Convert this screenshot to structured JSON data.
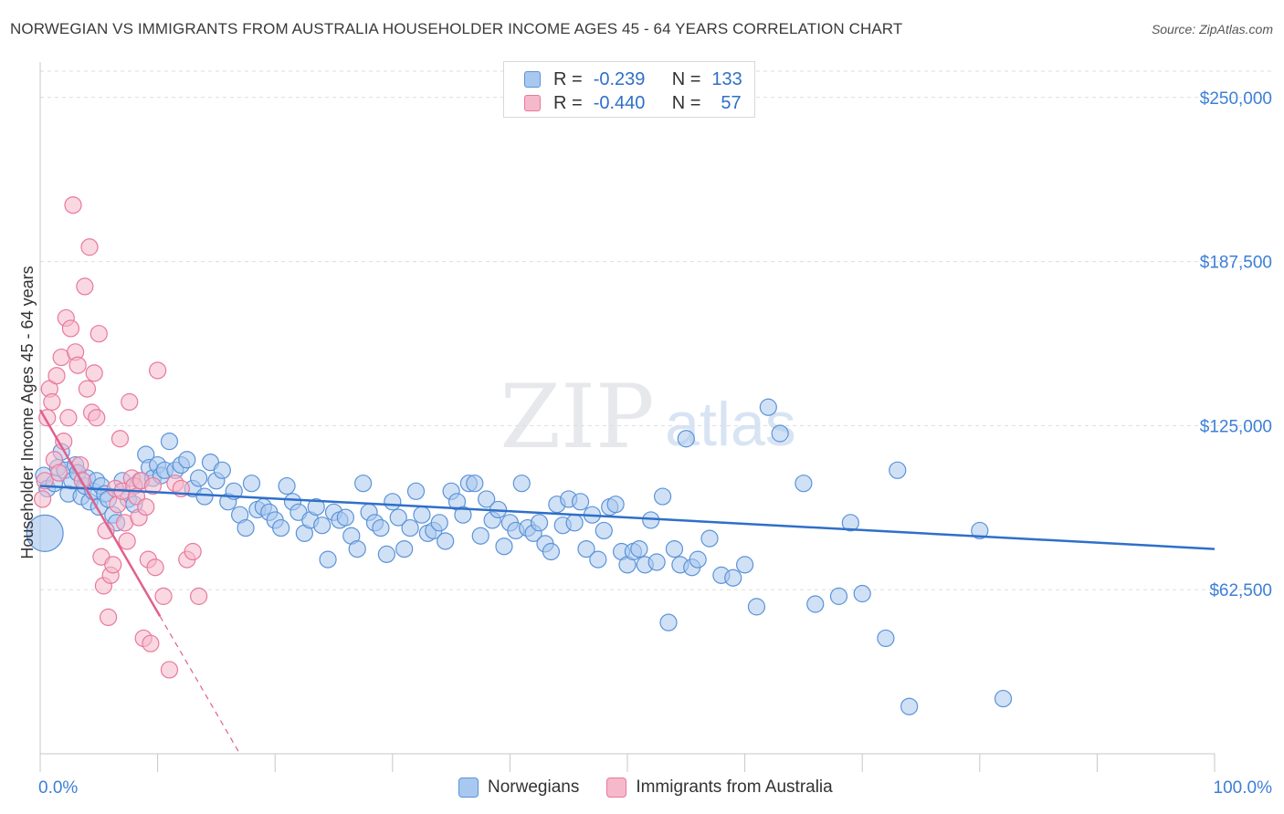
{
  "title": "NORWEGIAN VS IMMIGRANTS FROM AUSTRALIA HOUSEHOLDER INCOME AGES 45 - 64 YEARS CORRELATION CHART",
  "source": "Source: ZipAtlas.com",
  "watermark": {
    "zip": "ZIP",
    "atlas": "atlas"
  },
  "colors": {
    "blue_fill": "#a9c8ef",
    "blue_stroke": "#5b93d8",
    "blue_line": "#2f6fc9",
    "pink_fill": "#f6b8cb",
    "pink_stroke": "#e8789e",
    "pink_line": "#e0608c",
    "grid": "#d9dde4",
    "tick_label": "#3d7fd6"
  },
  "legend": {
    "series1": {
      "r_label": "R =",
      "r_value": "-0.239",
      "n_label": "N =",
      "n_value": "133"
    },
    "series2": {
      "r_label": "R =",
      "r_value": "-0.440",
      "n_label": "N =",
      "n_value": "57"
    }
  },
  "bottom_legend": {
    "series1": "Norwegians",
    "series2": "Immigrants from Australia"
  },
  "chart_data": {
    "type": "scatter",
    "title": "NORWEGIAN VS IMMIGRANTS FROM AUSTRALIA HOUSEHOLDER INCOME AGES 45 - 64 YEARS CORRELATION CHART",
    "xlabel": "",
    "ylabel": "Householder Income Ages 45 - 64 years",
    "xlim": [
      0,
      100
    ],
    "ylim": [
      0,
      260000
    ],
    "x_tick_labels": {
      "left": "0.0%",
      "right": "100.0%"
    },
    "y_ticks": [
      62500,
      125000,
      187500,
      250000
    ],
    "y_tick_labels": [
      "$62,500",
      "$125,000",
      "$187,500",
      "$250,000"
    ],
    "grid": true,
    "series": [
      {
        "name": "Norwegians",
        "r": -0.239,
        "n": 133,
        "trend": {
          "x0": 0,
          "y0": 102000,
          "x1": 100,
          "y1": 78000,
          "dashed_from_x": null
        },
        "points": [
          [
            0.3,
            106000
          ],
          [
            0.6,
            101000
          ],
          [
            1.2,
            103000
          ],
          [
            1.5,
            109000
          ],
          [
            1.8,
            115000
          ],
          [
            2.1,
            108000
          ],
          [
            2.4,
            99000
          ],
          [
            2.7,
            104000
          ],
          [
            3.0,
            110000
          ],
          [
            3.2,
            107000
          ],
          [
            3.5,
            98000
          ],
          [
            3.8,
            102000
          ],
          [
            4.0,
            105000
          ],
          [
            4.2,
            96000
          ],
          [
            4.5,
            100000
          ],
          [
            4.8,
            104000
          ],
          [
            5.0,
            94000
          ],
          [
            5.2,
            102000
          ],
          [
            5.5,
            99000
          ],
          [
            5.8,
            97000
          ],
          [
            6.2,
            91000
          ],
          [
            6.5,
            88000
          ],
          [
            7.0,
            104000
          ],
          [
            7.5,
            97000
          ],
          [
            8.0,
            95000
          ],
          [
            8.5,
            104000
          ],
          [
            9.0,
            114000
          ],
          [
            9.3,
            109000
          ],
          [
            9.6,
            105000
          ],
          [
            10.0,
            110000
          ],
          [
            10.3,
            106000
          ],
          [
            10.6,
            108000
          ],
          [
            11.0,
            119000
          ],
          [
            11.5,
            108000
          ],
          [
            12.0,
            110000
          ],
          [
            12.5,
            112000
          ],
          [
            13.0,
            101000
          ],
          [
            13.5,
            105000
          ],
          [
            14.0,
            98000
          ],
          [
            14.5,
            111000
          ],
          [
            15.0,
            104000
          ],
          [
            15.5,
            108000
          ],
          [
            16.0,
            96000
          ],
          [
            16.5,
            100000
          ],
          [
            17.0,
            91000
          ],
          [
            17.5,
            86000
          ],
          [
            18.0,
            103000
          ],
          [
            18.5,
            93000
          ],
          [
            19.0,
            94000
          ],
          [
            19.5,
            92000
          ],
          [
            20.0,
            89000
          ],
          [
            20.5,
            86000
          ],
          [
            21.0,
            102000
          ],
          [
            21.5,
            96000
          ],
          [
            22.0,
            92000
          ],
          [
            22.5,
            84000
          ],
          [
            23.0,
            89000
          ],
          [
            23.5,
            94000
          ],
          [
            24.0,
            87000
          ],
          [
            24.5,
            74000
          ],
          [
            25.0,
            92000
          ],
          [
            25.5,
            89000
          ],
          [
            26.0,
            90000
          ],
          [
            26.5,
            83000
          ],
          [
            27.0,
            78000
          ],
          [
            27.5,
            103000
          ],
          [
            28.0,
            92000
          ],
          [
            28.5,
            88000
          ],
          [
            29.0,
            86000
          ],
          [
            29.5,
            76000
          ],
          [
            30.0,
            96000
          ],
          [
            30.5,
            90000
          ],
          [
            31.0,
            78000
          ],
          [
            31.5,
            86000
          ],
          [
            32.0,
            100000
          ],
          [
            32.5,
            91000
          ],
          [
            33.0,
            84000
          ],
          [
            33.5,
            85000
          ],
          [
            34.0,
            88000
          ],
          [
            34.5,
            81000
          ],
          [
            35.0,
            100000
          ],
          [
            35.5,
            96000
          ],
          [
            36.0,
            91000
          ],
          [
            36.5,
            103000
          ],
          [
            37.0,
            103000
          ],
          [
            37.5,
            83000
          ],
          [
            38.0,
            97000
          ],
          [
            38.5,
            89000
          ],
          [
            39.0,
            93000
          ],
          [
            39.5,
            79000
          ],
          [
            40.0,
            88000
          ],
          [
            40.5,
            85000
          ],
          [
            41.0,
            103000
          ],
          [
            41.5,
            86000
          ],
          [
            42.0,
            84000
          ],
          [
            42.5,
            88000
          ],
          [
            43.0,
            80000
          ],
          [
            43.5,
            77000
          ],
          [
            44.0,
            95000
          ],
          [
            44.5,
            87000
          ],
          [
            45.0,
            97000
          ],
          [
            45.5,
            88000
          ],
          [
            46.0,
            96000
          ],
          [
            46.5,
            78000
          ],
          [
            47.0,
            91000
          ],
          [
            47.5,
            74000
          ],
          [
            48.0,
            85000
          ],
          [
            48.5,
            94000
          ],
          [
            49.0,
            95000
          ],
          [
            49.5,
            77000
          ],
          [
            50.0,
            72000
          ],
          [
            50.5,
            77000
          ],
          [
            51.0,
            78000
          ],
          [
            51.5,
            72000
          ],
          [
            52.0,
            89000
          ],
          [
            52.5,
            73000
          ],
          [
            53.0,
            98000
          ],
          [
            53.5,
            50000
          ],
          [
            54.0,
            78000
          ],
          [
            54.5,
            72000
          ],
          [
            55.0,
            120000
          ],
          [
            55.5,
            71000
          ],
          [
            56.0,
            74000
          ],
          [
            57.0,
            82000
          ],
          [
            58.0,
            68000
          ],
          [
            59.0,
            67000
          ],
          [
            60.0,
            72000
          ],
          [
            61.0,
            56000
          ],
          [
            62.0,
            132000
          ],
          [
            63.0,
            122000
          ],
          [
            65.0,
            103000
          ],
          [
            66.0,
            57000
          ],
          [
            68.0,
            60000
          ],
          [
            69.0,
            88000
          ],
          [
            70.0,
            61000
          ],
          [
            72.0,
            44000
          ],
          [
            73.0,
            108000
          ],
          [
            74.0,
            18000
          ],
          [
            80.0,
            85000
          ],
          [
            82.0,
            21000
          ]
        ]
      },
      {
        "name": "Immigrants from Australia",
        "r": -0.44,
        "n": 57,
        "trend": {
          "x0": 0,
          "y0": 131000,
          "x1": 17,
          "y1": 0,
          "dashed_from_x": 10.2
        },
        "points": [
          [
            0.2,
            97000
          ],
          [
            0.4,
            104000
          ],
          [
            0.6,
            128000
          ],
          [
            0.8,
            139000
          ],
          [
            1.0,
            134000
          ],
          [
            1.2,
            112000
          ],
          [
            1.4,
            144000
          ],
          [
            1.6,
            107000
          ],
          [
            1.8,
            151000
          ],
          [
            2.0,
            119000
          ],
          [
            2.2,
            166000
          ],
          [
            2.4,
            128000
          ],
          [
            2.6,
            162000
          ],
          [
            2.8,
            209000
          ],
          [
            3.0,
            153000
          ],
          [
            3.2,
            148000
          ],
          [
            3.4,
            110000
          ],
          [
            3.6,
            104000
          ],
          [
            3.8,
            178000
          ],
          [
            4.0,
            139000
          ],
          [
            4.2,
            193000
          ],
          [
            4.4,
            130000
          ],
          [
            4.6,
            145000
          ],
          [
            4.8,
            128000
          ],
          [
            5.0,
            160000
          ],
          [
            5.2,
            75000
          ],
          [
            5.4,
            64000
          ],
          [
            5.6,
            85000
          ],
          [
            5.8,
            52000
          ],
          [
            6.0,
            68000
          ],
          [
            6.2,
            72000
          ],
          [
            6.4,
            101000
          ],
          [
            6.6,
            95000
          ],
          [
            6.8,
            120000
          ],
          [
            7.0,
            100000
          ],
          [
            7.2,
            88000
          ],
          [
            7.4,
            81000
          ],
          [
            7.6,
            134000
          ],
          [
            7.8,
            105000
          ],
          [
            8.0,
            102000
          ],
          [
            8.2,
            98000
          ],
          [
            8.4,
            90000
          ],
          [
            8.6,
            104000
          ],
          [
            8.8,
            44000
          ],
          [
            9.0,
            94000
          ],
          [
            9.2,
            74000
          ],
          [
            9.4,
            42000
          ],
          [
            9.6,
            102000
          ],
          [
            9.8,
            71000
          ],
          [
            10.0,
            146000
          ],
          [
            10.5,
            60000
          ],
          [
            11.0,
            32000
          ],
          [
            11.5,
            103000
          ],
          [
            12.0,
            101000
          ],
          [
            12.5,
            74000
          ],
          [
            13.0,
            77000
          ],
          [
            13.5,
            60000
          ]
        ]
      }
    ]
  },
  "ylabel_text": "Householder Income Ages 45 - 64 years"
}
